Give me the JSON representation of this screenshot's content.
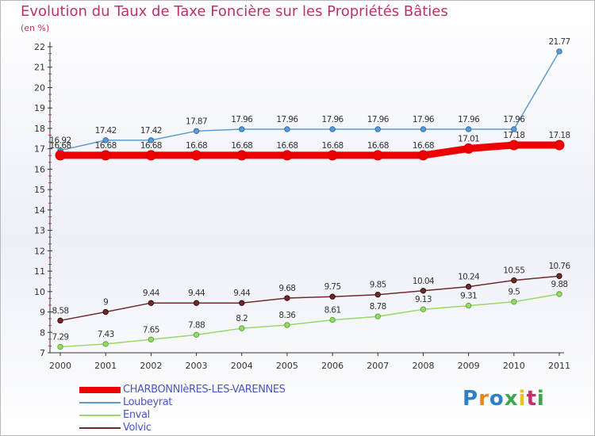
{
  "title": "Evolution du Taux de Taxe Foncière sur les Propriétés Bâties",
  "unit": "(en %)",
  "logo": {
    "text": "Proxiti",
    "colors": [
      "#2f7fc2",
      "#e38a1e",
      "#2f7fc2",
      "#3aa94a",
      "#e8c22a",
      "#c2306a",
      "#3aa94a"
    ]
  },
  "chart_data": {
    "type": "line",
    "title": "Evolution du Taux de Taxe Foncière sur les Propriétés Bâties",
    "ylabel": "(en %)",
    "xlabel": "",
    "ylim": [
      7,
      22
    ],
    "yticks": [
      7,
      8,
      9,
      10,
      11,
      12,
      13,
      14,
      15,
      16,
      17,
      18,
      19,
      20,
      21,
      22
    ],
    "x": [
      "2000",
      "2001",
      "2002",
      "2003",
      "2004",
      "2005",
      "2006",
      "2007",
      "2008",
      "2009",
      "2010",
      "2011"
    ],
    "series": [
      {
        "name": "CHARBONNIèRES-LES-VARENNES",
        "color": "#ee0000",
        "width": 9,
        "values": [
          16.68,
          16.68,
          16.68,
          16.68,
          16.68,
          16.68,
          16.68,
          16.68,
          16.68,
          17.01,
          17.18,
          17.18
        ],
        "labels": [
          "16.68",
          "16.68",
          "16.68",
          "16.68",
          "16.68",
          "16.68",
          "16.68",
          "16.68",
          "16.68",
          "17.01",
          "17.18",
          "17.18"
        ]
      },
      {
        "name": "Loubeyrat",
        "color": "#5b9bd5",
        "width": 1.5,
        "values": [
          16.92,
          17.42,
          17.42,
          17.87,
          17.96,
          17.96,
          17.96,
          17.96,
          17.96,
          17.96,
          17.96,
          21.77
        ],
        "labels": [
          "16.92",
          "17.42",
          "17.42",
          "17.87",
          "17.96",
          "17.96",
          "17.96",
          "17.96",
          "17.96",
          "17.96",
          "17.96",
          "21.77"
        ]
      },
      {
        "name": "Enval",
        "color": "#9ad86a",
        "width": 1.5,
        "values": [
          7.29,
          7.43,
          7.65,
          7.88,
          8.2,
          8.36,
          8.61,
          8.78,
          9.13,
          9.31,
          9.5,
          9.88
        ],
        "labels": [
          "7.29",
          "7.43",
          "7.65",
          "7.88",
          "8.2",
          "8.36",
          "8.61",
          "8.78",
          "9.13",
          "9.31",
          "9.5",
          "9.88"
        ]
      },
      {
        "name": "Volvic",
        "color": "#6e2a2a",
        "width": 1.5,
        "values": [
          8.58,
          9,
          9.44,
          9.44,
          9.44,
          9.68,
          9.75,
          9.85,
          10.04,
          10.24,
          10.55,
          10.76
        ],
        "labels": [
          "8.58",
          "9",
          "9.44",
          "9.44",
          "9.44",
          "9.68",
          "9.75",
          "9.85",
          "10.04",
          "10.24",
          "10.55",
          "10.76"
        ]
      }
    ],
    "legend": "bottom-left",
    "grid": false
  }
}
